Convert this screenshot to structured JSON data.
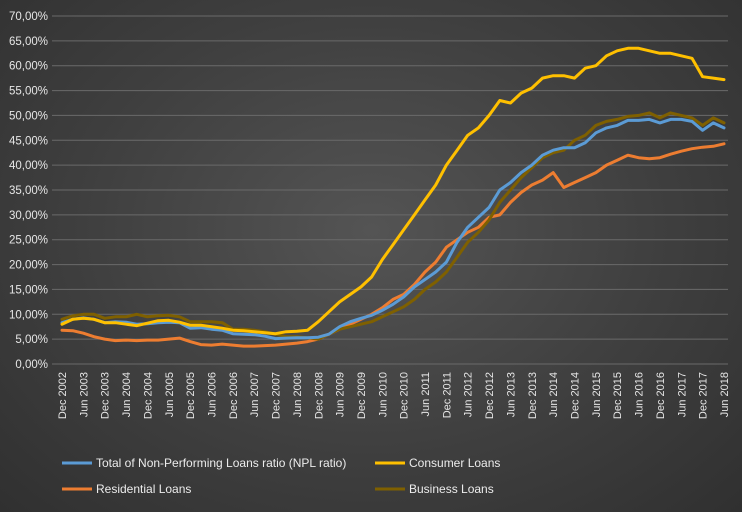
{
  "chart_data": {
    "type": "line",
    "title": "",
    "xlabel": "",
    "ylabel": "",
    "ylim": [
      0,
      70
    ],
    "grid": "horizontal",
    "legend_position": "bottom",
    "y_ticks": [
      "0,00%",
      "5,00%",
      "10,00%",
      "15,00%",
      "20,00%",
      "25,00%",
      "30,00%",
      "35,00%",
      "40,00%",
      "45,00%",
      "50,00%",
      "55,00%",
      "60,00%",
      "65,00%",
      "70,00%"
    ],
    "x_ticks": [
      "Dec 2002",
      "Jun 2003",
      "Dec 2003",
      "Jun 2004",
      "Dec 2004",
      "Jun 2005",
      "Dec 2005",
      "Jun 2006",
      "Dec 2006",
      "Jun 2007",
      "Dec 2007",
      "Jun 2008",
      "Dec 2008",
      "Jun 2009",
      "Dec 2009",
      "Jun 2010",
      "Dec 2010",
      "Jun 2011",
      "Dec 2011",
      "Jun 2012",
      "Dec 2012",
      "Jun 2013",
      "Dec 2013",
      "Jun 2014",
      "Dec 2014",
      "Jun 2015",
      "Dec 2015",
      "Jun 2016",
      "Dec 2016",
      "Jun 2017",
      "Dec 2017",
      "Jun 2018"
    ],
    "x": [
      "2002Q4",
      "2003Q1",
      "2003Q2",
      "2003Q3",
      "2003Q4",
      "2004Q1",
      "2004Q2",
      "2004Q3",
      "2004Q4",
      "2005Q1",
      "2005Q2",
      "2005Q3",
      "2005Q4",
      "2006Q1",
      "2006Q2",
      "2006Q3",
      "2006Q4",
      "2007Q1",
      "2007Q2",
      "2007Q3",
      "2007Q4",
      "2008Q1",
      "2008Q2",
      "2008Q3",
      "2008Q4",
      "2009Q1",
      "2009Q2",
      "2009Q3",
      "2009Q4",
      "2010Q1",
      "2010Q2",
      "2010Q3",
      "2010Q4",
      "2011Q1",
      "2011Q2",
      "2011Q3",
      "2011Q4",
      "2012Q1",
      "2012Q2",
      "2012Q3",
      "2012Q4",
      "2013Q1",
      "2013Q2",
      "2013Q3",
      "2013Q4",
      "2014Q1",
      "2014Q2",
      "2014Q3",
      "2014Q4",
      "2015Q1",
      "2015Q2",
      "2015Q3",
      "2015Q4",
      "2016Q1",
      "2016Q2",
      "2016Q3",
      "2016Q4",
      "2017Q1",
      "2017Q2",
      "2017Q3",
      "2017Q4",
      "2018Q1",
      "2018Q2"
    ],
    "series": [
      {
        "name": "Total of Non-Performing Loans ratio (NPL ratio)",
        "color": "#5b9bd5",
        "values": [
          8.3,
          9.0,
          9.3,
          9.0,
          8.3,
          8.5,
          8.4,
          8.0,
          8.1,
          8.3,
          8.4,
          8.3,
          7.2,
          7.3,
          7.0,
          6.8,
          6.1,
          6.0,
          5.9,
          5.6,
          5.1,
          5.2,
          5.3,
          5.3,
          5.4,
          6.0,
          7.5,
          8.5,
          9.2,
          9.8,
          10.8,
          12.0,
          13.5,
          15.5,
          17.0,
          18.5,
          20.5,
          24.5,
          27.5,
          29.5,
          31.5,
          35.0,
          36.5,
          38.5,
          40.0,
          42.0,
          43.0,
          43.5,
          43.5,
          44.5,
          46.5,
          47.5,
          48.0,
          49.0,
          49.0,
          49.2,
          48.5,
          49.2,
          49.2,
          48.8,
          47.0,
          48.5,
          47.5
        ]
      },
      {
        "name": "Consumer Loans",
        "color": "#ffc000",
        "values": [
          8.0,
          9.0,
          9.2,
          9.0,
          8.3,
          8.3,
          8.0,
          7.7,
          8.2,
          8.7,
          8.8,
          8.4,
          7.8,
          7.8,
          7.5,
          7.2,
          6.8,
          6.7,
          6.5,
          6.3,
          6.1,
          6.5,
          6.6,
          6.8,
          8.5,
          10.5,
          12.5,
          14.0,
          15.5,
          17.5,
          21.0,
          24.0,
          27.0,
          30.0,
          33.0,
          36.0,
          40.0,
          43.0,
          46.0,
          47.5,
          50.0,
          53.0,
          52.5,
          54.5,
          55.5,
          57.5,
          58.0,
          58.0,
          57.5,
          59.5,
          60.0,
          62.0,
          63.0,
          63.5,
          63.5,
          63.0,
          62.5,
          62.5,
          62.0,
          61.5,
          57.8,
          57.5,
          57.2
        ]
      },
      {
        "name": "Residential Loans",
        "color": "#ed7d31",
        "values": [
          6.8,
          6.7,
          6.2,
          5.5,
          5.0,
          4.7,
          4.8,
          4.7,
          4.8,
          4.8,
          5.0,
          5.2,
          4.5,
          3.9,
          3.8,
          4.0,
          3.8,
          3.6,
          3.6,
          3.7,
          3.8,
          4.0,
          4.2,
          4.5,
          5.0,
          6.0,
          7.0,
          8.0,
          9.0,
          10.0,
          11.3,
          13.0,
          14.0,
          16.0,
          18.5,
          20.5,
          23.5,
          25.0,
          26.5,
          27.5,
          29.5,
          30.0,
          32.5,
          34.5,
          36.0,
          37.0,
          38.5,
          35.5,
          36.5,
          37.5,
          38.5,
          40.0,
          41.0,
          42.0,
          41.5,
          41.3,
          41.5,
          42.2,
          42.8,
          43.3,
          43.6,
          43.8,
          44.3
        ]
      },
      {
        "name": "Business Loans",
        "color": "#7f6000",
        "values": [
          9.0,
          9.7,
          10.0,
          10.0,
          9.2,
          9.5,
          9.5,
          10.0,
          9.5,
          9.7,
          9.8,
          9.5,
          8.5,
          8.5,
          8.5,
          8.3,
          7.0,
          7.0,
          6.8,
          6.5,
          6.0,
          5.5,
          5.5,
          5.3,
          5.0,
          6.0,
          7.0,
          7.5,
          8.0,
          8.5,
          9.5,
          10.5,
          11.5,
          13.0,
          15.0,
          16.5,
          18.5,
          21.5,
          24.5,
          26.5,
          29.0,
          32.5,
          35.0,
          37.5,
          39.5,
          41.5,
          42.5,
          43.0,
          45.0,
          46.0,
          48.0,
          48.8,
          49.2,
          49.8,
          50.0,
          50.5,
          49.5,
          50.5,
          50.0,
          49.5,
          48.0,
          49.5,
          48.5
        ]
      }
    ]
  }
}
